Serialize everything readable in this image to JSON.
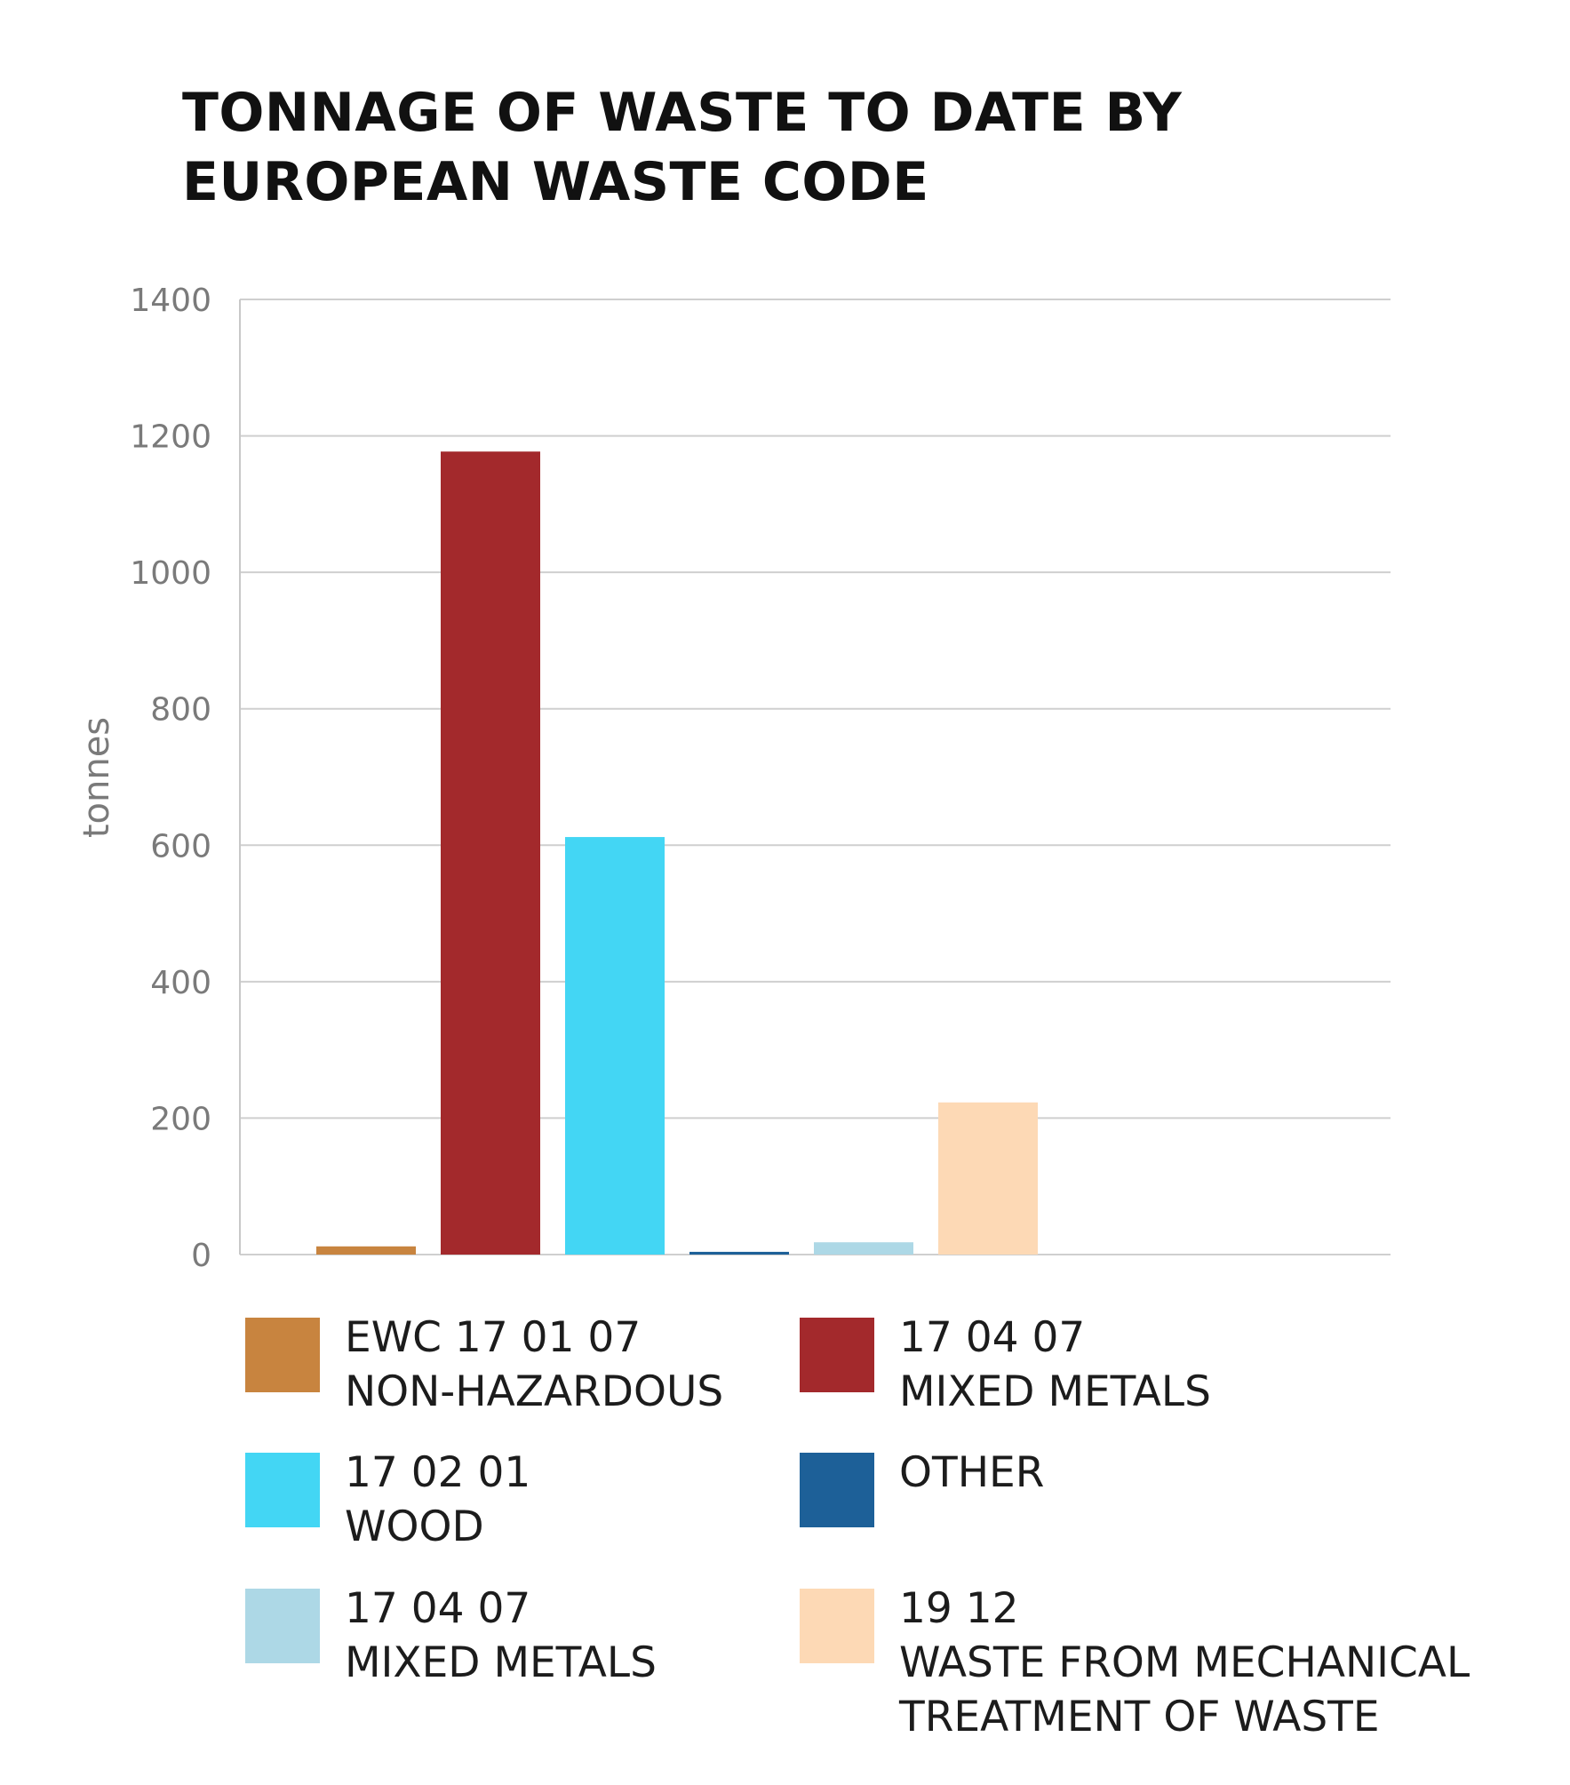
{
  "title_lines": [
    "TONNAGE OF WASTE TO DATE BY",
    "EUROPEAN WASTE CODE"
  ],
  "chart_data": {
    "type": "bar",
    "ylabel": "tonnes",
    "ylim": [
      0,
      1400
    ],
    "yticks": [
      0,
      200,
      400,
      600,
      800,
      1000,
      1200,
      1400
    ],
    "grid": true,
    "legend_position": "bottom",
    "bars": [
      {
        "legend_lines": [
          "EWC 17 01 07",
          "NON-HAZARDOUS"
        ],
        "value": 12,
        "color": "#C8843F"
      },
      {
        "legend_lines": [
          "17 04 07",
          "MIXED METALS"
        ],
        "value": 1177,
        "color": "#A3292C"
      },
      {
        "legend_lines": [
          "17 02 01",
          "WOOD"
        ],
        "value": 612,
        "color": "#43D6F4"
      },
      {
        "legend_lines": [
          "OTHER"
        ],
        "value": 4,
        "color": "#1D6098"
      },
      {
        "legend_lines": [
          "17 04 07",
          "MIXED METALS"
        ],
        "value": 18,
        "color": "#ADD8E6"
      },
      {
        "legend_lines": [
          "19 12",
          "WASTE FROM MECHANICAL",
          "TREATMENT OF WASTE"
        ],
        "value": 223,
        "color": "#FDD9B5"
      }
    ]
  }
}
